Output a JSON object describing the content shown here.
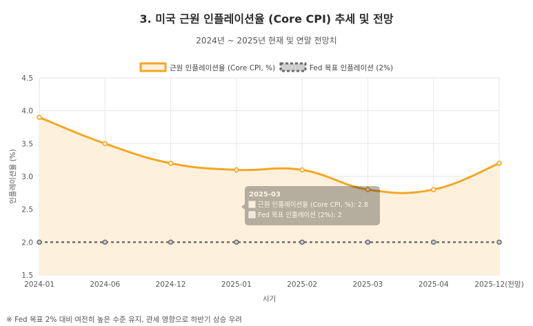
{
  "title": "3. 미국 근원 인플레이션율 (Core CPI) 추세 및 전망",
  "subtitle": "2024년 ~ 2025년 현재 및 연말 전망치",
  "footnote": "※ Fed 목표 2% 대비 여전히 높은 수준 유지, 관세 영향으로 하반기 상승 우려",
  "colors": {
    "core_cpi": "#f5a623",
    "core_cpi_fill": "#fdf1dc",
    "fed_target": "#6b6b6b",
    "grid": "#e6e6e6"
  },
  "tooltip": {
    "title": "2025-03",
    "lines": [
      "근원 인플레이션율 (Core CPI, %): 2.8",
      "Fed 목표 인플레이션 (2%): 2"
    ]
  },
  "chart_data": {
    "type": "line",
    "title": "3. 미국 근원 인플레이션율 (Core CPI) 추세 및 전망",
    "subtitle": "2024년 ~ 2025년 현재 및 연말 전망치",
    "categories": [
      "2024-01",
      "2024-06",
      "2024-12",
      "2025-01",
      "2025-02",
      "2025-03",
      "2025-04",
      "2025-12(전망)"
    ],
    "series": [
      {
        "name": "근원 인플레이션율 (Core CPI, %)",
        "values": [
          3.9,
          3.5,
          3.2,
          3.1,
          3.1,
          2.8,
          2.8,
          3.2
        ],
        "fill": true
      },
      {
        "name": "Fed 목표 인플레이션 (2%)",
        "values": [
          2,
          2,
          2,
          2,
          2,
          2,
          2,
          2
        ],
        "dashed": true
      }
    ],
    "xlabel": "시기",
    "ylabel": "인플레이션율 (%)",
    "ylim": [
      1.5,
      4.5
    ],
    "yticks": [
      "1.5",
      "2.0",
      "2.5",
      "3.0",
      "3.5",
      "4.0",
      "4.5"
    ],
    "grid": true,
    "legend": "top-center"
  }
}
